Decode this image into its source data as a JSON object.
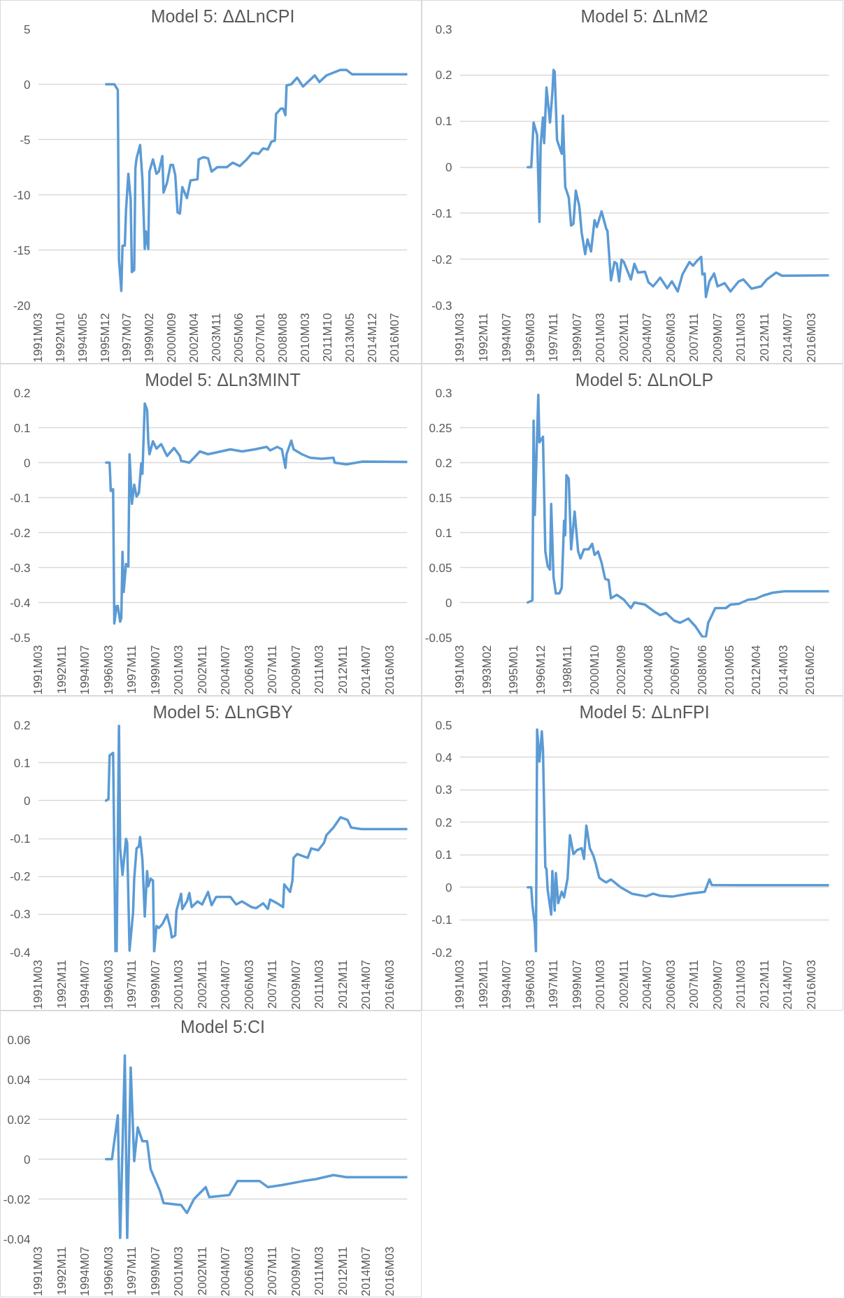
{
  "chart_data": [
    {
      "type": "line",
      "title": "Model 5: ΔΔLnCPI",
      "color": "#5b9bd5",
      "grid": "y",
      "xlim": [
        "1991-03",
        "2017-06"
      ],
      "ylim": [
        -20,
        5
      ],
      "yticks": [
        -20,
        -15,
        -10,
        -5,
        0,
        5
      ],
      "xticks": [
        {
          "value": "1991-03",
          "label": "1991M03"
        },
        {
          "value": "1992-10",
          "label": "1992M10"
        },
        {
          "value": "1994-05",
          "label": "1994M05"
        },
        {
          "value": "1995-12",
          "label": "1995M12"
        },
        {
          "value": "1997-07",
          "label": "1997M07"
        },
        {
          "value": "1999-02",
          "label": "1999M02"
        },
        {
          "value": "2000-09",
          "label": "2000M09"
        },
        {
          "value": "2002-04",
          "label": "2002M04"
        },
        {
          "value": "2003-11",
          "label": "2003M11"
        },
        {
          "value": "2005-06",
          "label": "2005M06"
        },
        {
          "value": "2007-01",
          "label": "2007M01"
        },
        {
          "value": "2008-08",
          "label": "2008M08"
        },
        {
          "value": "2010-03",
          "label": "2010M03"
        },
        {
          "value": "2011-10",
          "label": "2011M10"
        },
        {
          "value": "2013-05",
          "label": "2013M05"
        },
        {
          "value": "2014-12",
          "label": "2014M12"
        },
        {
          "value": "2016-07",
          "label": "2016M07"
        }
      ],
      "x": [
        "1996-01",
        "1996-08",
        "1996-11",
        "1996-12",
        "1997-02",
        "1997-03",
        "1997-05",
        "1997-06",
        "1997-08",
        "1997-10",
        "1997-11",
        "1998-01",
        "1998-02",
        "1998-03",
        "1998-06",
        "1998-08",
        "1998-10",
        "1998-11",
        "1999-01",
        "1999-02",
        "1999-05",
        "1999-08",
        "1999-10",
        "2000-01",
        "2000-02",
        "2000-05",
        "2000-08",
        "2000-10",
        "2000-12",
        "2001-02",
        "2001-04",
        "2001-06",
        "2001-10",
        "2002-01",
        "2002-07",
        "2002-08",
        "2002-12",
        "2003-04",
        "2003-07",
        "2003-12",
        "2004-08",
        "2005-01",
        "2005-07",
        "2006-01",
        "2006-06",
        "2006-11",
        "2007-03",
        "2007-07",
        "2007-10",
        "2008-01",
        "2008-02",
        "2008-06",
        "2008-08",
        "2008-10",
        "2008-11",
        "2009-03",
        "2009-08",
        "2010-01",
        "2010-11",
        "2011-03",
        "2011-09",
        "2012-09",
        "2013-02",
        "2013-07",
        "2014-02",
        "2017-06"
      ],
      "values": [
        0,
        0,
        -0.5,
        -15.9,
        -18.7,
        -14.6,
        -14.6,
        -11.4,
        -8.1,
        -10.5,
        -17,
        -16.8,
        -7.6,
        -6.7,
        -5.5,
        -8.6,
        -14.9,
        -13.3,
        -14.9,
        -7.9,
        -6.8,
        -8.1,
        -7.9,
        -6.5,
        -9.8,
        -8.9,
        -7.3,
        -7.3,
        -8.2,
        -11.6,
        -11.7,
        -9.3,
        -10.3,
        -8.7,
        -8.6,
        -6.8,
        -6.6,
        -6.7,
        -7.9,
        -7.5,
        -7.5,
        -7.1,
        -7.4,
        -6.8,
        -6.2,
        -6.3,
        -5.8,
        -5.9,
        -5.2,
        -5.1,
        -2.7,
        -2.2,
        -2.2,
        -2.8,
        -0.1,
        0,
        0.6,
        -0.2,
        0.8,
        0.2,
        0.8,
        1.3,
        1.3,
        0.9,
        0.9,
        0.9
      ]
    },
    {
      "type": "line",
      "title": "Model 5: ΔLnM2",
      "color": "#5b9bd5",
      "grid": "y",
      "xlim": [
        "1991-03",
        "2017-06"
      ],
      "ylim": [
        -0.3,
        0.3
      ],
      "yticks": [
        -0.3,
        -0.2,
        -0.1,
        0,
        0.1,
        0.2,
        0.3
      ],
      "xticks": [
        {
          "value": "1991-03",
          "label": "1991M03"
        },
        {
          "value": "1992-11",
          "label": "1992M11"
        },
        {
          "value": "1994-07",
          "label": "1994M07"
        },
        {
          "value": "1996-03",
          "label": "1996M03"
        },
        {
          "value": "1997-11",
          "label": "1997M11"
        },
        {
          "value": "1999-07",
          "label": "1999M07"
        },
        {
          "value": "2001-03",
          "label": "2001M03"
        },
        {
          "value": "2002-11",
          "label": "2002M11"
        },
        {
          "value": "2004-07",
          "label": "2004M07"
        },
        {
          "value": "2006-03",
          "label": "2006M03"
        },
        {
          "value": "2007-11",
          "label": "2007M11"
        },
        {
          "value": "2009-07",
          "label": "2009M07"
        },
        {
          "value": "2011-03",
          "label": "2011M03"
        },
        {
          "value": "2012-11",
          "label": "2012M11"
        },
        {
          "value": "2014-07",
          "label": "2014M07"
        },
        {
          "value": "2016-03",
          "label": "2016M03"
        }
      ],
      "x": [
        "1996-01",
        "1996-04",
        "1996-06",
        "1996-09",
        "1996-11",
        "1996-12",
        "1997-02",
        "1997-03",
        "1997-05",
        "1997-08",
        "1997-10",
        "1997-11",
        "1997-12",
        "1998-02",
        "1998-06",
        "1998-07",
        "1998-09",
        "1998-12",
        "1999-02",
        "1999-04",
        "1999-06",
        "1999-09",
        "1999-11",
        "2000-02",
        "2000-04",
        "2000-07",
        "2000-10",
        "2000-12",
        "2001-04",
        "2001-08",
        "2001-09",
        "2001-12",
        "2002-03",
        "2002-05",
        "2002-07",
        "2002-09",
        "2002-11",
        "2003-05",
        "2003-08",
        "2003-11",
        "2004-05",
        "2004-08",
        "2004-12",
        "2005-06",
        "2005-12",
        "2006-04",
        "2006-09",
        "2007-01",
        "2007-07",
        "2007-10",
        "2008-02",
        "2008-05",
        "2008-06",
        "2008-08",
        "2008-09",
        "2008-12",
        "2009-04",
        "2009-07",
        "2010-01",
        "2010-06",
        "2011-01",
        "2011-05",
        "2011-12",
        "2012-08",
        "2013-01",
        "2013-09",
        "2014-02",
        "2017-06"
      ],
      "values": [
        0,
        0,
        0.097,
        0.07,
        -0.119,
        0.048,
        0.108,
        0.052,
        0.173,
        0.097,
        0.161,
        0.211,
        0.207,
        0.059,
        0.029,
        0.112,
        -0.043,
        -0.066,
        -0.127,
        -0.123,
        -0.051,
        -0.085,
        -0.142,
        -0.189,
        -0.157,
        -0.183,
        -0.115,
        -0.13,
        -0.096,
        -0.134,
        -0.138,
        -0.246,
        -0.206,
        -0.21,
        -0.248,
        -0.201,
        -0.206,
        -0.244,
        -0.21,
        -0.229,
        -0.227,
        -0.25,
        -0.259,
        -0.24,
        -0.263,
        -0.248,
        -0.27,
        -0.233,
        -0.206,
        -0.214,
        -0.202,
        -0.195,
        -0.233,
        -0.231,
        -0.282,
        -0.248,
        -0.231,
        -0.259,
        -0.252,
        -0.27,
        -0.248,
        -0.244,
        -0.264,
        -0.259,
        -0.244,
        -0.229,
        -0.236,
        -0.235
      ]
    },
    {
      "type": "line",
      "title": "Model 5: ΔLn3MINT",
      "color": "#5b9bd5",
      "grid": "y",
      "xlim": [
        "1991-03",
        "2017-06"
      ],
      "ylim": [
        -0.5,
        0.2
      ],
      "yticks": [
        -0.5,
        -0.4,
        -0.3,
        -0.2,
        -0.1,
        0,
        0.1,
        0.2
      ],
      "xticks": [
        {
          "value": "1991-03",
          "label": "1991M03"
        },
        {
          "value": "1992-11",
          "label": "1992M11"
        },
        {
          "value": "1994-07",
          "label": "1994M07"
        },
        {
          "value": "1996-03",
          "label": "1996M03"
        },
        {
          "value": "1997-11",
          "label": "1997M11"
        },
        {
          "value": "1999-07",
          "label": "1999M07"
        },
        {
          "value": "2001-03",
          "label": "2001M03"
        },
        {
          "value": "2002-11",
          "label": "2002M11"
        },
        {
          "value": "2004-07",
          "label": "2004M07"
        },
        {
          "value": "2006-03",
          "label": "2006M03"
        },
        {
          "value": "2007-11",
          "label": "2007M11"
        },
        {
          "value": "2009-07",
          "label": "2009M07"
        },
        {
          "value": "2011-03",
          "label": "2011M03"
        },
        {
          "value": "2012-11",
          "label": "2012M11"
        },
        {
          "value": "2014-07",
          "label": "2014M07"
        },
        {
          "value": "2016-03",
          "label": "2016M03"
        }
      ],
      "x": [
        "1996-01",
        "1996-04",
        "1996-05",
        "1996-07",
        "1996-08",
        "1996-10",
        "1996-11",
        "1997-01",
        "1997-02",
        "1997-03",
        "1997-04",
        "1997-06",
        "1997-08",
        "1997-09",
        "1997-11",
        "1998-01",
        "1998-03",
        "1998-05",
        "1998-07",
        "1998-08",
        "1998-10",
        "1998-12",
        "1999-01",
        "1999-02",
        "1999-05",
        "1999-08",
        "1999-12",
        "2000-05",
        "2000-11",
        "2001-04",
        "2001-05",
        "2001-12",
        "2002-06",
        "2002-09",
        "2003-04",
        "2003-11",
        "2004-11",
        "2005-09",
        "2006-08",
        "2007-06",
        "2007-09",
        "2008-03",
        "2008-07",
        "2008-10",
        "2008-11",
        "2009-03",
        "2009-05",
        "2009-12",
        "2010-07",
        "2011-05",
        "2012-03",
        "2012-04",
        "2013-02",
        "2014-04",
        "2017-06"
      ],
      "values": [
        0,
        0,
        -0.081,
        -0.076,
        -0.46,
        -0.41,
        -0.41,
        -0.455,
        -0.444,
        -0.255,
        -0.37,
        -0.29,
        -0.297,
        0.024,
        -0.118,
        -0.063,
        -0.097,
        -0.086,
        -0.002,
        -0.032,
        0.169,
        0.151,
        0.061,
        0.024,
        0.061,
        0.04,
        0.053,
        0.019,
        0.042,
        0.019,
        0.005,
        0,
        0.021,
        0.032,
        0.024,
        0.029,
        0.038,
        0.032,
        0.038,
        0.045,
        0.035,
        0.045,
        0.038,
        -0.015,
        0.024,
        0.063,
        0.038,
        0.024,
        0.014,
        0.011,
        0.014,
        0,
        -0.005,
        0.003,
        0.002
      ]
    },
    {
      "type": "line",
      "title": "Model 5: ΔLnOLP",
      "color": "#5b9bd5",
      "grid": "y",
      "xlim": [
        "1991-03",
        "2017-06"
      ],
      "ylim": [
        -0.05,
        0.3
      ],
      "yticks": [
        -0.05,
        0,
        0.05,
        0.1,
        0.15,
        0.2,
        0.25,
        0.3
      ],
      "xticks": [
        {
          "value": "1991-03",
          "label": "1991M03"
        },
        {
          "value": "1993-02",
          "label": "1993M02"
        },
        {
          "value": "1995-01",
          "label": "1995M01"
        },
        {
          "value": "1996-12",
          "label": "1996M12"
        },
        {
          "value": "1998-11",
          "label": "1998M11"
        },
        {
          "value": "2000-10",
          "label": "2000M10"
        },
        {
          "value": "2002-09",
          "label": "2002M09"
        },
        {
          "value": "2004-08",
          "label": "2004M08"
        },
        {
          "value": "2006-07",
          "label": "2006M07"
        },
        {
          "value": "2008-06",
          "label": "2008M06"
        },
        {
          "value": "2010-05",
          "label": "2010M05"
        },
        {
          "value": "2012-04",
          "label": "2012M04"
        },
        {
          "value": "2014-03",
          "label": "2014M03"
        },
        {
          "value": "2016-02",
          "label": "2016M02"
        }
      ],
      "x": [
        "1996-01",
        "1996-05",
        "1996-06",
        "1996-07",
        "1996-10",
        "1996-11",
        "1997-02",
        "1997-04",
        "1997-06",
        "1997-08",
        "1997-09",
        "1997-11",
        "1998-01",
        "1998-04",
        "1998-06",
        "1998-08",
        "1998-09",
        "1998-10",
        "1998-12",
        "1999-02",
        "1999-05",
        "1999-08",
        "1999-10",
        "2000-01",
        "2000-05",
        "2000-08",
        "2000-10",
        "2001-01",
        "2001-04",
        "2001-07",
        "2001-10",
        "2001-12",
        "2002-05",
        "2002-11",
        "2003-05",
        "2003-08",
        "2004-05",
        "2005-01",
        "2005-06",
        "2005-11",
        "2006-06",
        "2006-11",
        "2007-06",
        "2007-12",
        "2008-06",
        "2008-09",
        "2008-11",
        "2009-05",
        "2010-02",
        "2010-06",
        "2011-01",
        "2011-09",
        "2012-03",
        "2012-10",
        "2013-06",
        "2014-04",
        "2017-06"
      ],
      "values": [
        0,
        0.003,
        0.26,
        0.125,
        0.297,
        0.229,
        0.237,
        0.073,
        0.052,
        0.047,
        0.141,
        0.036,
        0.013,
        0.013,
        0.021,
        0.117,
        0.096,
        0.182,
        0.177,
        0.076,
        0.13,
        0.073,
        0.063,
        0.076,
        0.076,
        0.084,
        0.068,
        0.073,
        0.057,
        0.034,
        0.032,
        0.006,
        0.011,
        0.004,
        -0.008,
        0,
        -0.003,
        -0.013,
        -0.018,
        -0.015,
        -0.026,
        -0.029,
        -0.023,
        -0.034,
        -0.049,
        -0.049,
        -0.029,
        -0.008,
        -0.008,
        -0.003,
        -0.002,
        0.004,
        0.005,
        0.01,
        0.014,
        0.016,
        0.016
      ]
    },
    {
      "type": "line",
      "title": "Model 5: ΔLnGBY",
      "color": "#5b9bd5",
      "grid": "y",
      "xlim": [
        "1991-03",
        "2017-06"
      ],
      "ylim": [
        -0.4,
        0.2
      ],
      "yticks": [
        -0.4,
        -0.3,
        -0.2,
        -0.1,
        0,
        0.1,
        0.2
      ],
      "xticks": [
        {
          "value": "1991-03",
          "label": "1991M03"
        },
        {
          "value": "1992-11",
          "label": "1992M11"
        },
        {
          "value": "1994-07",
          "label": "1994M07"
        },
        {
          "value": "1996-03",
          "label": "1996M03"
        },
        {
          "value": "1997-11",
          "label": "1997M11"
        },
        {
          "value": "1999-07",
          "label": "1999M07"
        },
        {
          "value": "2001-03",
          "label": "2001M03"
        },
        {
          "value": "2002-11",
          "label": "2002M11"
        },
        {
          "value": "2004-07",
          "label": "2004M07"
        },
        {
          "value": "2006-03",
          "label": "2006M03"
        },
        {
          "value": "2007-11",
          "label": "2007M11"
        },
        {
          "value": "2009-07",
          "label": "2009M07"
        },
        {
          "value": "2011-03",
          "label": "2011M03"
        },
        {
          "value": "2012-11",
          "label": "2012M11"
        },
        {
          "value": "2014-07",
          "label": "2014M07"
        },
        {
          "value": "2016-03",
          "label": "2016M03"
        }
      ],
      "x": [
        "1996-01",
        "1996-03",
        "1996-04",
        "1996-06",
        "1996-07",
        "1996-09",
        "1996-10",
        "1996-12",
        "1997-01",
        "1997-03",
        "1997-06",
        "1997-07",
        "1997-09",
        "1997-12",
        "1998-01",
        "1998-03",
        "1998-05",
        "1998-06",
        "1998-08",
        "1998-10",
        "1998-12",
        "1999-01",
        "1999-03",
        "1999-05",
        "1999-06",
        "1999-08",
        "1999-10",
        "2000-01",
        "2000-05",
        "2000-08",
        "2000-09",
        "2000-12",
        "2001-01",
        "2001-05",
        "2001-06",
        "2001-10",
        "2001-12",
        "2002-02",
        "2002-07",
        "2002-11",
        "2003-04",
        "2003-07",
        "2003-11",
        "2004-11",
        "2005-04",
        "2005-09",
        "2006-05",
        "2006-09",
        "2007-03",
        "2007-07",
        "2007-09",
        "2008-03",
        "2008-08",
        "2008-09",
        "2009-02",
        "2009-04",
        "2009-05",
        "2009-08",
        "2010-05",
        "2010-08",
        "2011-02",
        "2011-07",
        "2011-09",
        "2012-03",
        "2012-09",
        "2013-03",
        "2013-06",
        "2014-03",
        "2017-06"
      ],
      "values": [
        0,
        0.004,
        0.119,
        0.124,
        0.126,
        -0.4,
        -0.4,
        0.2,
        -0.126,
        -0.196,
        -0.101,
        -0.111,
        -0.396,
        -0.296,
        -0.206,
        -0.126,
        -0.121,
        -0.096,
        -0.156,
        -0.306,
        -0.186,
        -0.226,
        -0.206,
        -0.211,
        -0.4,
        -0.331,
        -0.336,
        -0.326,
        -0.301,
        -0.338,
        -0.361,
        -0.356,
        -0.291,
        -0.246,
        -0.286,
        -0.266,
        -0.244,
        -0.281,
        -0.266,
        -0.274,
        -0.241,
        -0.276,
        -0.254,
        -0.254,
        -0.274,
        -0.266,
        -0.281,
        -0.284,
        -0.271,
        -0.286,
        -0.261,
        -0.271,
        -0.281,
        -0.221,
        -0.241,
        -0.211,
        -0.151,
        -0.141,
        -0.151,
        -0.126,
        -0.131,
        -0.111,
        -0.091,
        -0.071,
        -0.044,
        -0.051,
        -0.071,
        -0.075,
        -0.075
      ]
    },
    {
      "type": "line",
      "title": "Model 5: ΔLnFPI",
      "color": "#5b9bd5",
      "grid": "y",
      "xlim": [
        "1991-03",
        "2017-06"
      ],
      "ylim": [
        -0.2,
        0.5
      ],
      "yticks": [
        -0.2,
        -0.1,
        0,
        0.1,
        0.2,
        0.3,
        0.4,
        0.5
      ],
      "xticks": [
        {
          "value": "1991-03",
          "label": "1991M03"
        },
        {
          "value": "1992-11",
          "label": "1992M11"
        },
        {
          "value": "1994-07",
          "label": "1994M07"
        },
        {
          "value": "1996-03",
          "label": "1996M03"
        },
        {
          "value": "1997-11",
          "label": "1997M11"
        },
        {
          "value": "1999-07",
          "label": "1999M07"
        },
        {
          "value": "2001-03",
          "label": "2001M03"
        },
        {
          "value": "2002-11",
          "label": "2002M11"
        },
        {
          "value": "2004-07",
          "label": "2004M07"
        },
        {
          "value": "2006-03",
          "label": "2006M03"
        },
        {
          "value": "2007-11",
          "label": "2007M11"
        },
        {
          "value": "2009-07",
          "label": "2009M07"
        },
        {
          "value": "2011-03",
          "label": "2011M03"
        },
        {
          "value": "2012-11",
          "label": "2012M11"
        },
        {
          "value": "2014-07",
          "label": "2014M07"
        },
        {
          "value": "2016-03",
          "label": "2016M03"
        }
      ],
      "x": [
        "1996-01",
        "1996-04",
        "1996-05",
        "1996-07",
        "1996-08",
        "1996-09",
        "1996-11",
        "1997-01",
        "1997-02",
        "1997-04",
        "1997-05",
        "1997-06",
        "1997-09",
        "1997-10",
        "1997-12",
        "1998-01",
        "1998-03",
        "1998-06",
        "1998-08",
        "1998-11",
        "1999-01",
        "1999-04",
        "1999-07",
        "1999-11",
        "2000-01",
        "2000-03",
        "2000-06",
        "2000-09",
        "2000-11",
        "2001-02",
        "2001-05",
        "2001-08",
        "2001-12",
        "2002-05",
        "2002-09",
        "2003-06",
        "2004-06",
        "2004-12",
        "2005-06",
        "2006-04",
        "2007-06",
        "2008-08",
        "2008-12",
        "2009-02",
        "2011-05",
        "2017-06"
      ],
      "values": [
        0,
        0,
        -0.055,
        -0.113,
        -0.2,
        0.486,
        0.387,
        0.48,
        0.422,
        0.062,
        0.056,
        -0.008,
        -0.084,
        0.05,
        -0.072,
        0.044,
        -0.049,
        -0.014,
        -0.031,
        0.027,
        0.16,
        0.102,
        0.114,
        0.12,
        0.087,
        0.19,
        0.12,
        0.097,
        0.073,
        0.029,
        0.021,
        0.015,
        0.024,
        0.009,
        -0.002,
        -0.02,
        -0.028,
        -0.02,
        -0.026,
        -0.029,
        -0.02,
        -0.014,
        0.024,
        0.007,
        0.006,
        0.006
      ]
    },
    {
      "type": "line",
      "title": "Model 5:CI",
      "color": "#5b9bd5",
      "grid": "y",
      "xlim": [
        "1991-03",
        "2017-06"
      ],
      "ylim": [
        -0.04,
        0.06
      ],
      "yticks": [
        -0.04,
        -0.02,
        0,
        0.02,
        0.04,
        0.06
      ],
      "xticks": [
        {
          "value": "1991-03",
          "label": "1991M03"
        },
        {
          "value": "1992-11",
          "label": "1992M11"
        },
        {
          "value": "1994-07",
          "label": "1994M07"
        },
        {
          "value": "1996-03",
          "label": "1996M03"
        },
        {
          "value": "1997-11",
          "label": "1997M11"
        },
        {
          "value": "1999-07",
          "label": "1999M07"
        },
        {
          "value": "2001-03",
          "label": "2001M03"
        },
        {
          "value": "2002-11",
          "label": "2002M11"
        },
        {
          "value": "2004-07",
          "label": "2004M07"
        },
        {
          "value": "2006-03",
          "label": "2006M03"
        },
        {
          "value": "2007-11",
          "label": "2007M11"
        },
        {
          "value": "2009-07",
          "label": "2009M07"
        },
        {
          "value": "2011-03",
          "label": "2011M03"
        },
        {
          "value": "2012-11",
          "label": "2012M11"
        },
        {
          "value": "2014-07",
          "label": "2014M07"
        },
        {
          "value": "2016-03",
          "label": "2016M03"
        }
      ],
      "x": [
        "1996-01",
        "1996-06",
        "1996-11",
        "1997-01",
        "1997-05",
        "1997-07",
        "1997-10",
        "1998-01",
        "1998-04",
        "1998-08",
        "1998-12",
        "1999-03",
        "1999-11",
        "2000-02",
        "2001-05",
        "2001-10",
        "2002-04",
        "2003-02",
        "2003-05",
        "2004-10",
        "2005-05",
        "2006-12",
        "2007-07",
        "2008-07",
        "2010-01",
        "2010-12",
        "2012-03",
        "2013-02",
        "2017-06"
      ],
      "values": [
        0,
        0,
        0.022,
        -0.04,
        0.052,
        -0.04,
        0.046,
        -0.001,
        0.016,
        0.009,
        0.009,
        -0.005,
        -0.016,
        -0.022,
        -0.023,
        -0.027,
        -0.02,
        -0.014,
        -0.019,
        -0.018,
        -0.011,
        -0.011,
        -0.014,
        -0.013,
        -0.011,
        -0.01,
        -0.008,
        -0.009,
        -0.009
      ]
    }
  ]
}
